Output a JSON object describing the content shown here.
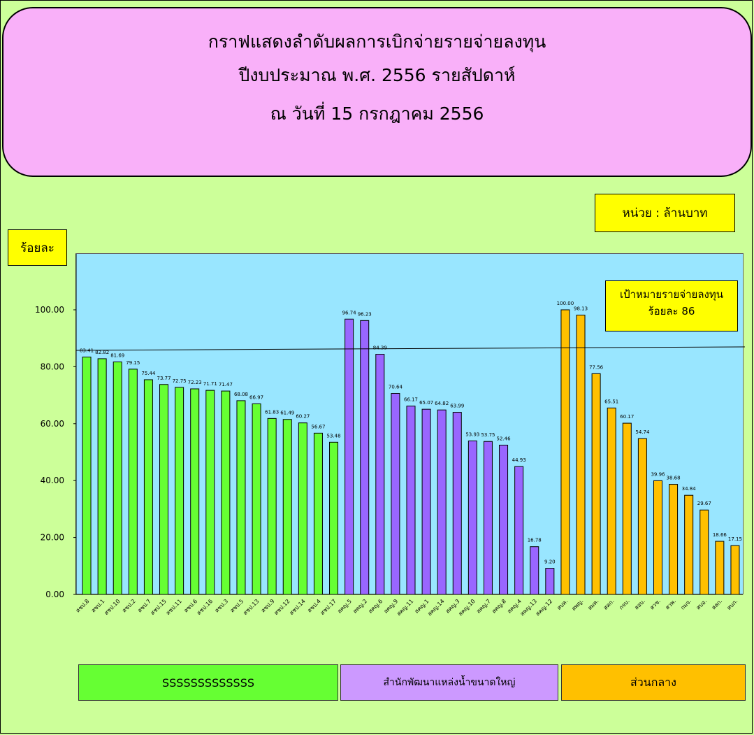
{
  "title": {
    "line1": "กราฟแสดงลำดับผลการเบิกจ่ายรายจ่ายลงทุน",
    "line2": "ปีงบประมาณ พ.ศ. 2556 รายสัปดาห์",
    "line3": "ณ วันที่  15 กรกฎาคม  2556"
  },
  "unit_label": "หน่วย  :  ล้านบาท",
  "y_axis_label": "ร้อยละ",
  "target": {
    "line1": "เป้าหมายรายจ่ายลงทุน",
    "line2": "ร้อยละ 86"
  },
  "legend": [
    {
      "label": "SSSSSSSSSSSSS",
      "color": "#66ff33"
    },
    {
      "label": "สำนักพัฒนาแหล่งน้ำขนาดใหญ่",
      "color": "#cc99ff"
    },
    {
      "label": "ส่วนกลาง",
      "color": "#ffc000"
    }
  ],
  "chart_data": {
    "type": "bar",
    "title": "กราฟแสดงลำดับผลการเบิกจ่ายรายจ่ายลงทุน",
    "ylabel": "ร้อยละ",
    "ylim": [
      0,
      120
    ],
    "yticks": [
      "0.00",
      "20.00",
      "40.00",
      "60.00",
      "80.00",
      "100.00"
    ],
    "target_value": 86,
    "series": [
      {
        "name": "SSSSSSSSSSSSS",
        "color": "#66ff33",
        "categories": [
          "สชป.8",
          "สชป.1",
          "สชป.10",
          "สชป.2",
          "สชป.7",
          "สชป.15",
          "สชป.11",
          "สชป.6",
          "สชป.16",
          "สชป.3",
          "สชป.5",
          "สชป.13",
          "สชป.9",
          "สชป.12",
          "สชป.14",
          "สชป.4",
          "สชป.17"
        ],
        "values": [
          83.41,
          82.82,
          81.69,
          79.15,
          75.44,
          73.77,
          72.75,
          72.23,
          71.71,
          71.47,
          68.08,
          66.97,
          61.83,
          61.49,
          60.27,
          56.67,
          53.48
        ],
        "labels": [
          "83.41",
          "82.82",
          "81.69",
          "79.15",
          "75.44",
          "73.77",
          "72.75",
          "72.23",
          "71.71",
          "71.47",
          "68.08",
          "66.97",
          "61.83",
          "61.49",
          "60.27",
          "56.67",
          "53.48"
        ]
      },
      {
        "name": "สำนักพัฒนาแหล่งน้ำขนาดใหญ่",
        "color": "#9966ff",
        "categories": [
          "สคญ.5",
          "สคญ.2",
          "สคญ.6",
          "สคญ.9",
          "สคญ.11",
          "สคญ.1",
          "สคญ.14",
          "สคญ.3",
          "สคญ.10",
          "สคญ.7",
          "สคญ.8",
          "สคญ.4",
          "สคญ.13",
          "สคญ.12"
        ],
        "values": [
          96.74,
          96.23,
          84.39,
          70.64,
          66.17,
          65.07,
          64.82,
          63.99,
          53.93,
          53.75,
          52.46,
          44.93,
          16.78,
          9.2
        ],
        "labels": [
          "96.74",
          "96.23",
          "84.39",
          "70.64",
          "66.17",
          "65.07",
          "64.82",
          "63.99",
          "53.93",
          "53.75",
          "52.46",
          "44.93",
          "16.78",
          "9.20"
        ]
      },
      {
        "name": "ส่วนกลาง",
        "color": "#ffc000",
        "categories": [
          "สบค.",
          "สพญ.",
          "สมค.",
          "สคก.",
          "กจบ.",
          "สอบ.",
          "สวช.",
          "สวพ.",
          "กมจ.",
          "สบอ.",
          "สลก.",
          "สบภ."
        ],
        "values": [
          100.0,
          98.13,
          77.56,
          65.51,
          60.17,
          54.74,
          39.96,
          38.68,
          34.84,
          29.67,
          18.66,
          17.15
        ],
        "labels": [
          "100.00",
          "98.13",
          "77.56",
          "65.51",
          "60.17",
          "54.74",
          "39.96",
          "38.68",
          "34.84",
          "29.67",
          "18.66",
          "17.15"
        ]
      }
    ]
  }
}
